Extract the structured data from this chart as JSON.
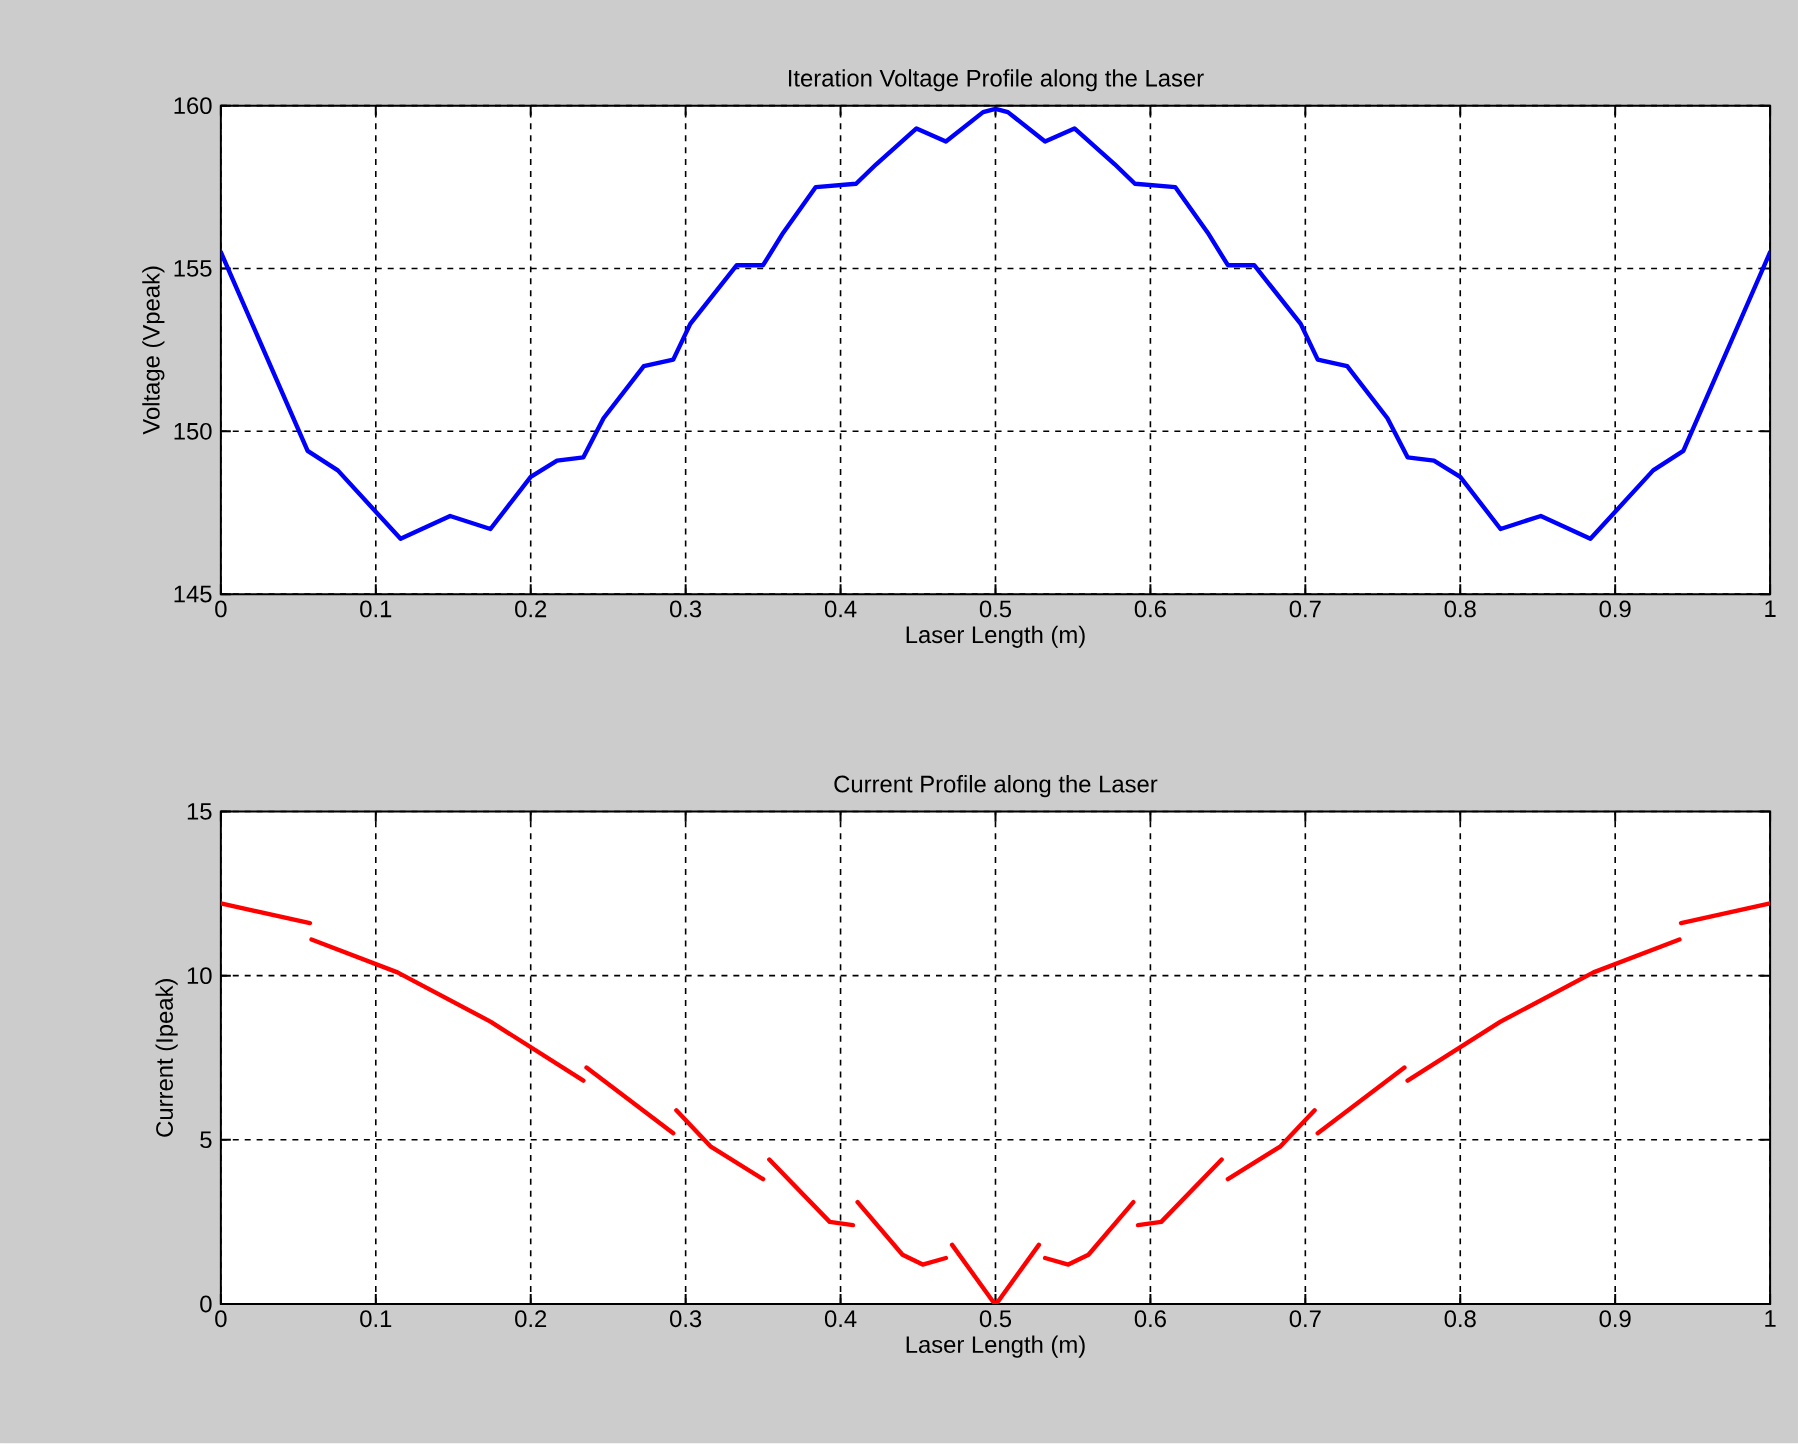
{
  "chart_data": [
    {
      "type": "line",
      "title": "Iteration Voltage Profile along the Laser",
      "xlabel": "Laser Length (m)",
      "ylabel": "Voltage (Vpeak)",
      "xlim": [
        0,
        1
      ],
      "ylim": [
        145,
        160
      ],
      "xticks": [
        0,
        0.1,
        0.2,
        0.3,
        0.4,
        0.5,
        0.6,
        0.7,
        0.8,
        0.9,
        1
      ],
      "yticks": [
        145,
        150,
        155,
        160
      ],
      "grid": true,
      "series": [
        {
          "color": "#0000ff",
          "x": [
            0,
            0.056,
            0.0755,
            0.116,
            0.148,
            0.174,
            0.2,
            0.217,
            0.234,
            0.247,
            0.273,
            0.292,
            0.303,
            0.333,
            0.35,
            0.363,
            0.384,
            0.41,
            0.423,
            0.449,
            0.468,
            0.492,
            0.5,
            0.508,
            0.532,
            0.551,
            0.577,
            0.59,
            0.616,
            0.637,
            0.65,
            0.667,
            0.697,
            0.708,
            0.727,
            0.753,
            0.766,
            0.783,
            0.8,
            0.826,
            0.852,
            0.884,
            0.9245,
            0.944,
            1
          ],
          "values": [
            155.5,
            149.4,
            148.8,
            146.7,
            147.4,
            147.0,
            148.6,
            149.1,
            149.2,
            150.4,
            152.0,
            152.2,
            153.3,
            155.1,
            155.1,
            156.1,
            157.5,
            157.6,
            158.2,
            159.3,
            158.9,
            159.8,
            159.9,
            159.8,
            158.9,
            159.3,
            158.2,
            157.6,
            157.5,
            156.1,
            155.1,
            155.1,
            153.3,
            152.2,
            152.0,
            150.4,
            149.2,
            149.1,
            148.6,
            147.0,
            147.4,
            146.7,
            148.8,
            149.4,
            155.5
          ]
        }
      ]
    },
    {
      "type": "line",
      "title": "Current Profile along the Laser",
      "xlabel": "Laser Length (m)",
      "ylabel": "Current (Ipeak)",
      "xlim": [
        0,
        1
      ],
      "ylim": [
        0,
        15
      ],
      "xticks": [
        0,
        0.1,
        0.2,
        0.3,
        0.4,
        0.5,
        0.6,
        0.7,
        0.8,
        0.9,
        1
      ],
      "yticks": [
        0,
        5,
        10,
        15
      ],
      "grid": true,
      "series": [
        {
          "color": "#ff0000",
          "x": [
            0,
            0.0575,
            0.058,
            0.0585,
            0.114,
            0.174,
            0.234,
            0.235,
            0.236,
            0.292,
            0.293,
            0.294,
            0.316,
            0.35,
            0.352,
            0.354,
            0.393,
            0.408,
            0.41,
            0.411,
            0.44,
            0.453,
            0.468,
            0.47,
            0.472,
            0.498,
            0.5,
            0.502,
            0.528,
            0.53,
            0.532,
            0.547,
            0.56,
            0.589,
            0.59,
            0.592,
            0.607,
            0.646,
            0.648,
            0.65,
            0.684,
            0.706,
            0.707,
            0.708,
            0.764,
            0.765,
            0.766,
            0.826,
            0.886,
            0.9415,
            0.942,
            0.9425,
            1
          ],
          "values": [
            12.2,
            11.6,
            null,
            11.1,
            10.1,
            8.6,
            6.8,
            null,
            7.2,
            5.2,
            null,
            5.9,
            4.8,
            3.8,
            null,
            4.4,
            2.5,
            2.4,
            null,
            3.1,
            1.5,
            1.2,
            1.4,
            null,
            1.8,
            0.1,
            0,
            0.1,
            1.8,
            null,
            1.4,
            1.2,
            1.5,
            3.1,
            null,
            2.4,
            2.5,
            4.4,
            null,
            3.8,
            4.8,
            5.9,
            null,
            5.2,
            7.2,
            null,
            6.8,
            8.6,
            10.1,
            11.1,
            null,
            11.6,
            12.2
          ]
        }
      ]
    }
  ]
}
